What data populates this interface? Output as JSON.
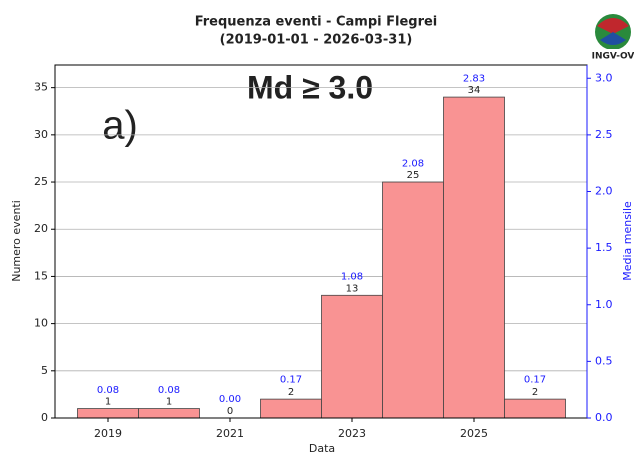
{
  "chart_data": {
    "type": "bar",
    "title": "Frequenza eventi - Campi Flegrei",
    "subtitle": "(2019-01-01 - 2026-03-31)",
    "annotation": "Md ≥ 3.0",
    "panel_label": "a)",
    "logo_text": "INGV-OV",
    "xlabel": "Data",
    "ylabel": "Numero eventi",
    "y2label": "Media mensile",
    "categories": [
      "2019",
      null,
      "2021",
      null,
      "2023",
      null,
      "2025",
      null
    ],
    "series": [
      {
        "name": "Numero eventi",
        "color": "#f99393",
        "values": [
          1,
          1,
          0,
          2,
          13,
          25,
          34,
          2
        ]
      },
      {
        "name": "Media mensile",
        "color": "#1a1aff",
        "axis": "y2",
        "values": [
          0.08,
          0.08,
          0,
          0.17,
          1.08,
          2.08,
          2.83,
          0.17
        ],
        "value_labels": [
          "0.08",
          "0.08",
          "0.00",
          "0.17",
          "1.08",
          "2.08",
          "2.83",
          "0.17"
        ]
      }
    ],
    "ylim": [
      0,
      37.4
    ],
    "yticks": [
      0,
      5,
      10,
      15,
      20,
      25,
      30,
      35
    ],
    "y2lim": [
      0,
      3.117
    ],
    "y2ticks": [
      {
        "value": 0,
        "label": "0.0"
      },
      0.5,
      {
        "value": 1,
        "label": "1.0"
      },
      1.5,
      {
        "value": 2,
        "label": "2.0"
      },
      2.5,
      {
        "value": 3,
        "label": "3.0"
      }
    ],
    "grid": true
  }
}
